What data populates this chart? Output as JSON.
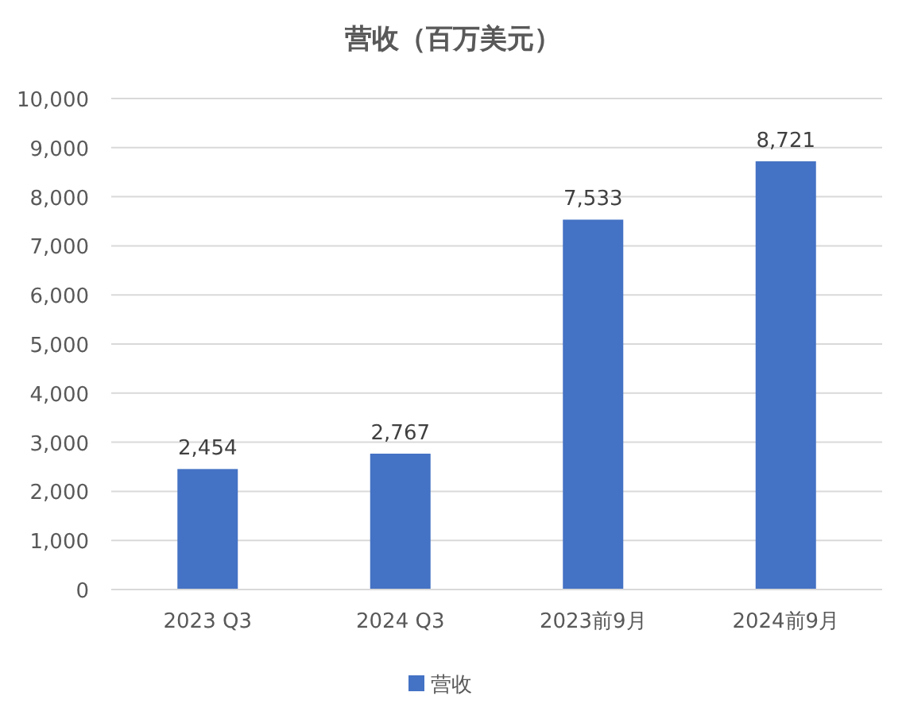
{
  "chart_data": {
    "type": "bar",
    "title": "营收（百万美元）",
    "categories": [
      "2023 Q3",
      "2024 Q3",
      "2023前9月",
      "2024前9月"
    ],
    "series": [
      {
        "name": "营收",
        "color": "#4472c4",
        "values": [
          2454,
          2767,
          7533,
          8721
        ],
        "value_labels": [
          "2,454",
          "2,767",
          "7,533",
          "8,721"
        ]
      }
    ],
    "ylim": [
      0,
      10000
    ],
    "yticks": [
      {
        "value": 0,
        "label": "0"
      },
      {
        "value": 1000,
        "label": "1,000"
      },
      {
        "value": 2000,
        "label": "2,000"
      },
      {
        "value": 3000,
        "label": "3,000"
      },
      {
        "value": 4000,
        "label": "4,000"
      },
      {
        "value": 5000,
        "label": "5,000"
      },
      {
        "value": 6000,
        "label": "6,000"
      },
      {
        "value": 7000,
        "label": "7,000"
      },
      {
        "value": 8000,
        "label": "8,000"
      },
      {
        "value": 9000,
        "label": "9,000"
      },
      {
        "value": 10000,
        "label": "10,000"
      }
    ],
    "grid": "y",
    "legend": "bottom"
  }
}
